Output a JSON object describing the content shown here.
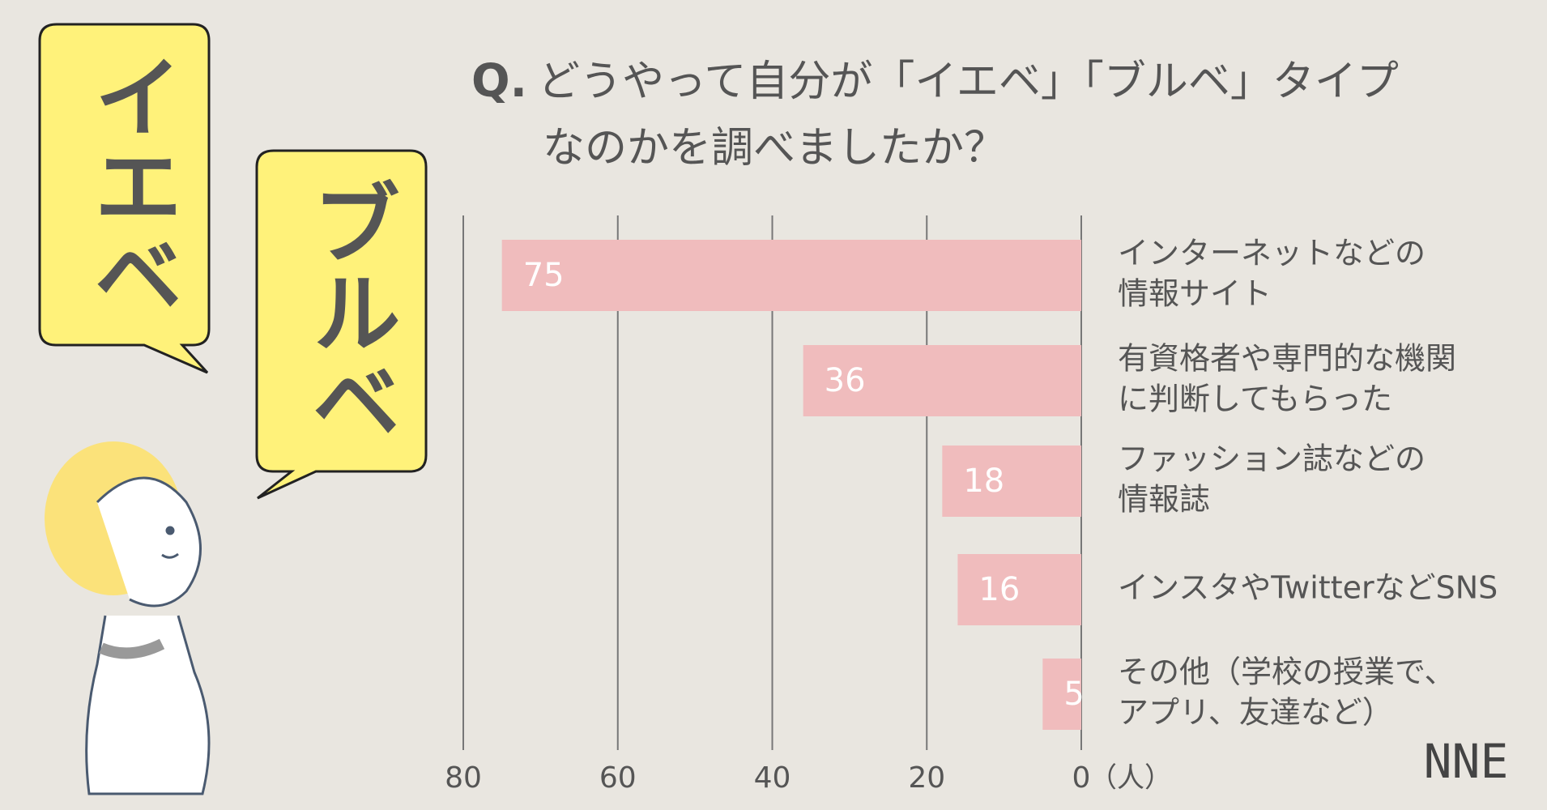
{
  "chart_data": {
    "type": "bar",
    "title_prefix": "Q.",
    "title": [
      "どうやって自分が「イエベ」「ブルベ」タイプ",
      "なのかを調べましたか？"
    ],
    "categories": [
      [
        "インターネットなどの",
        "情報サイト"
      ],
      [
        "有資格者や専門的な機関",
        "に判断してもらった"
      ],
      [
        "ファッション誌などの",
        "情報誌"
      ],
      [
        "インスタやTwitterなどSNS"
      ],
      [
        "その他（学校の授業で、",
        "アプリ、友達など）"
      ]
    ],
    "values": [
      75,
      36,
      18,
      16,
      5
    ],
    "color": "#f0bcbd",
    "xlim": [
      0,
      80
    ],
    "xticks": [
      80,
      60,
      40,
      20,
      0
    ],
    "x_reversed": true,
    "x_unit": "（人）",
    "grid": true
  },
  "bubbles": [
    "イエベ",
    "ブルベ"
  ],
  "logo": "NNE"
}
